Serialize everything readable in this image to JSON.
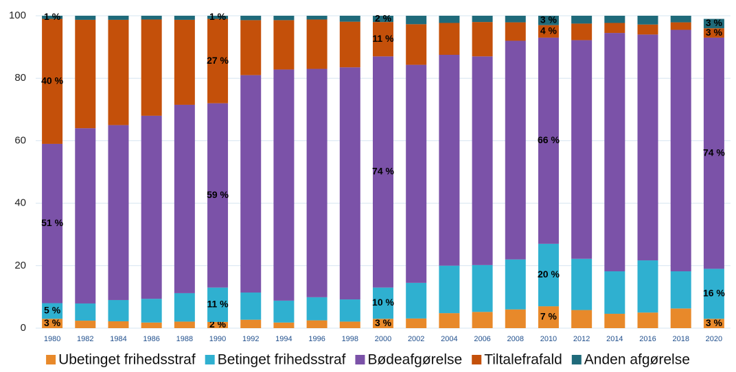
{
  "chart_data": {
    "type": "stacked_bar",
    "categories": [
      "1980",
      "1982",
      "1984",
      "1986",
      "1988",
      "1990",
      "1992",
      "1994",
      "1996",
      "1998",
      "2000",
      "2002",
      "2004",
      "2006",
      "2008",
      "2010",
      "2012",
      "2014",
      "2016",
      "2018",
      "2020"
    ],
    "series": [
      {
        "name": "Ubetinget frihedsstraf",
        "color": "#e8892a",
        "values": [
          3,
          2.4,
          2.2,
          1.8,
          2.1,
          2,
          2.7,
          1.8,
          2.5,
          2.1,
          3,
          3.1,
          4.8,
          5.2,
          6,
          7,
          5.8,
          4.6,
          5,
          6.3,
          3
        ],
        "value_labels": [
          "3 %",
          null,
          null,
          null,
          null,
          "2 %",
          null,
          null,
          null,
          null,
          "3 %",
          null,
          null,
          null,
          null,
          "7 %",
          null,
          null,
          null,
          null,
          "3 %"
        ]
      },
      {
        "name": "Betinget frihedsstraf",
        "color": "#2fb0d0",
        "values": [
          5,
          5.5,
          6.8,
          7.6,
          9.1,
          11,
          8.7,
          7,
          7.4,
          7.1,
          10,
          11.4,
          15.2,
          15,
          16,
          20,
          16.4,
          13.6,
          16.7,
          11.9,
          16
        ],
        "value_labels": [
          "5 %",
          null,
          null,
          null,
          null,
          "11 %",
          null,
          null,
          null,
          null,
          "10 %",
          null,
          null,
          null,
          null,
          "20 %",
          null,
          null,
          null,
          null,
          "16 %"
        ]
      },
      {
        "name": "Bødeafgørelse",
        "color": "#7b52a8",
        "values": [
          51,
          56.1,
          56,
          58.6,
          60.3,
          59,
          69.6,
          74,
          73.1,
          74.3,
          74,
          69.8,
          67.5,
          66.8,
          70,
          66,
          70,
          76.3,
          72.3,
          77.3,
          74
        ],
        "value_labels": [
          "51 %",
          null,
          null,
          null,
          null,
          "59 %",
          null,
          null,
          null,
          null,
          "74 %",
          null,
          null,
          null,
          null,
          "66 %",
          null,
          null,
          null,
          null,
          "74 %"
        ]
      },
      {
        "name": "Tiltalefrafald",
        "color": "#c4500a",
        "values": [
          40,
          34.7,
          33.7,
          30.8,
          27.2,
          27,
          17.6,
          15.8,
          15.8,
          14.6,
          11,
          13,
          10.2,
          11,
          5.9,
          4,
          5.3,
          3.2,
          3.2,
          2.4,
          3
        ],
        "value_labels": [
          "40 %",
          null,
          null,
          null,
          null,
          "27 %",
          null,
          null,
          null,
          null,
          "11 %",
          null,
          null,
          null,
          null,
          "4 %",
          null,
          null,
          null,
          null,
          "3 %"
        ]
      },
      {
        "name": "Anden afgørelse",
        "color": "#1f6a7a",
        "values": [
          1,
          1.3,
          1.3,
          1.2,
          1.3,
          1,
          1.4,
          1.4,
          1.2,
          1.9,
          2,
          2.7,
          2.3,
          2,
          2.1,
          3,
          2.5,
          2.3,
          2.8,
          2.1,
          3
        ],
        "value_labels": [
          "1 %",
          null,
          null,
          null,
          null,
          "1 %",
          null,
          null,
          null,
          null,
          "2 %",
          null,
          null,
          null,
          null,
          "3 %",
          null,
          null,
          null,
          null,
          "3 %"
        ]
      }
    ],
    "ylim": [
      0,
      100
    ],
    "yticks": [
      0,
      20,
      40,
      60,
      80,
      100
    ],
    "grid": true,
    "legend": "bottom"
  }
}
